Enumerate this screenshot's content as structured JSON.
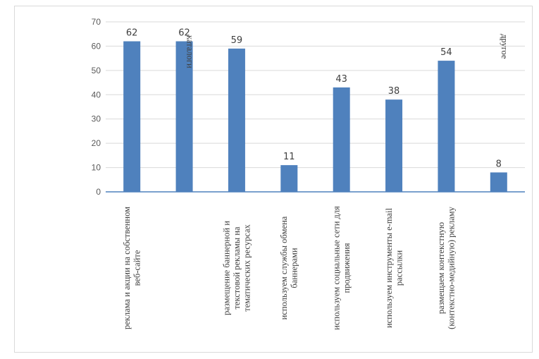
{
  "chart_data": {
    "type": "bar",
    "title": "",
    "xlabel": "",
    "ylabel": "",
    "ylim": [
      0,
      70
    ],
    "yticks": [
      0,
      10,
      20,
      30,
      40,
      50,
      60,
      70
    ],
    "grid": true,
    "bar_color": "#4f81bd",
    "categories": [
      [
        "реклама и акции на собственном",
        "веб-сайте"
      ],
      [
        "каталоги"
      ],
      [
        "размещение баннерной и",
        "текстовой рекламы на",
        "тематических ресурсах"
      ],
      [
        "используем службы обмена",
        "баннерами"
      ],
      [
        "используем социальные сети для",
        "продвижения"
      ],
      [
        "используем инструменты e-mail",
        "рассылки"
      ],
      [
        "размещаем контекстную",
        "(контекстно-медийную) рекламу"
      ],
      [
        "другое"
      ]
    ],
    "values": [
      62,
      62,
      59,
      11,
      43,
      38,
      54,
      8
    ]
  }
}
